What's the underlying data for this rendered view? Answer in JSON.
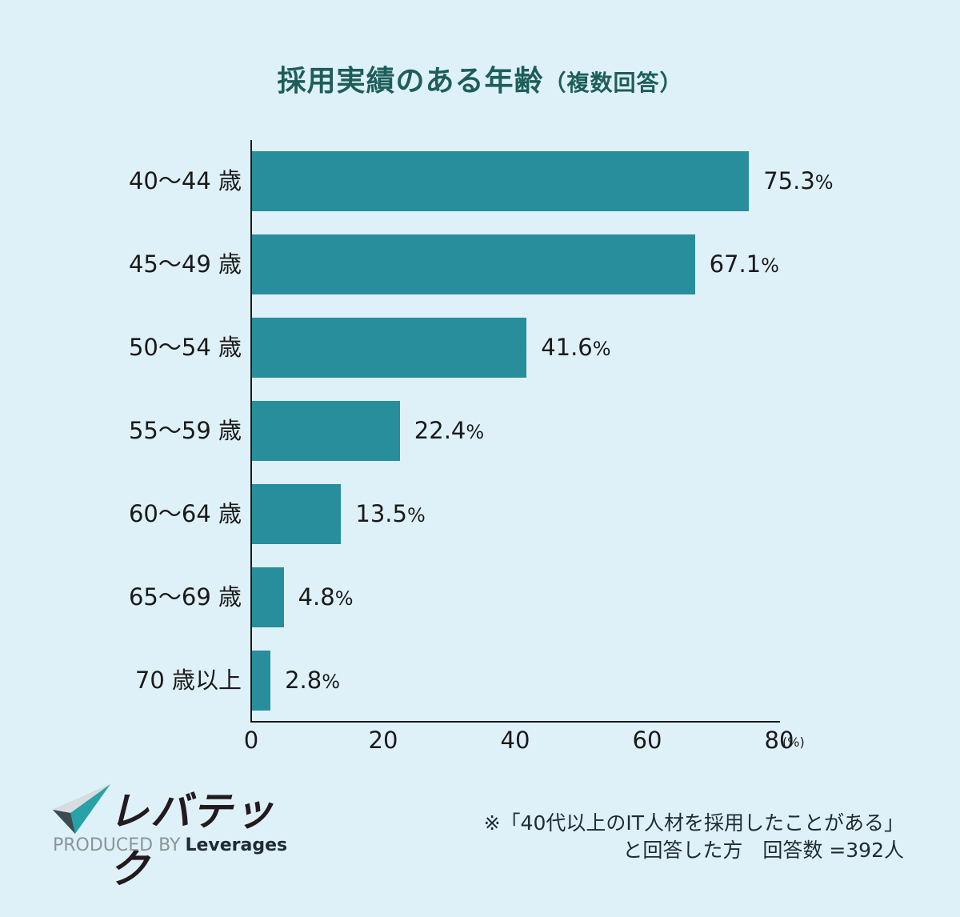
{
  "title": {
    "main": "採用実績のある年齢",
    "sub": "（複数回答）"
  },
  "chart_data": {
    "type": "bar",
    "orientation": "horizontal",
    "title": "採用実績のある年齢（複数回答）",
    "categories": [
      "40〜44 歳",
      "45〜49 歳",
      "50〜54 歳",
      "55〜59 歳",
      "60〜64 歳",
      "65〜69 歳",
      "70 歳以上"
    ],
    "values": [
      75.3,
      67.1,
      41.6,
      22.4,
      13.5,
      4.8,
      2.8
    ],
    "value_labels": [
      "75.3",
      "67.1",
      "41.6",
      "22.4",
      "13.5",
      "4.8",
      "2.8"
    ],
    "value_suffix": "%",
    "xlabel": "(%)",
    "ylabel": "",
    "xlim": [
      0,
      80
    ],
    "xticks": [
      "0",
      "20",
      "40",
      "60",
      "80"
    ],
    "grid": false,
    "legend": null,
    "bar_color": "#288e9c"
  },
  "axis": {
    "unit": "(%)"
  },
  "colors": {
    "background": "#dff1f8",
    "title": "#1d5e5a",
    "bar": "#288e9c"
  },
  "logo": {
    "brand": "レバテック",
    "produced_by": "PRODUCED BY",
    "company": "Leverages"
  },
  "note": {
    "line1": "※「40代以上のIT人材を採用したことがある」",
    "line2": "と回答した方　回答数 =392人"
  }
}
